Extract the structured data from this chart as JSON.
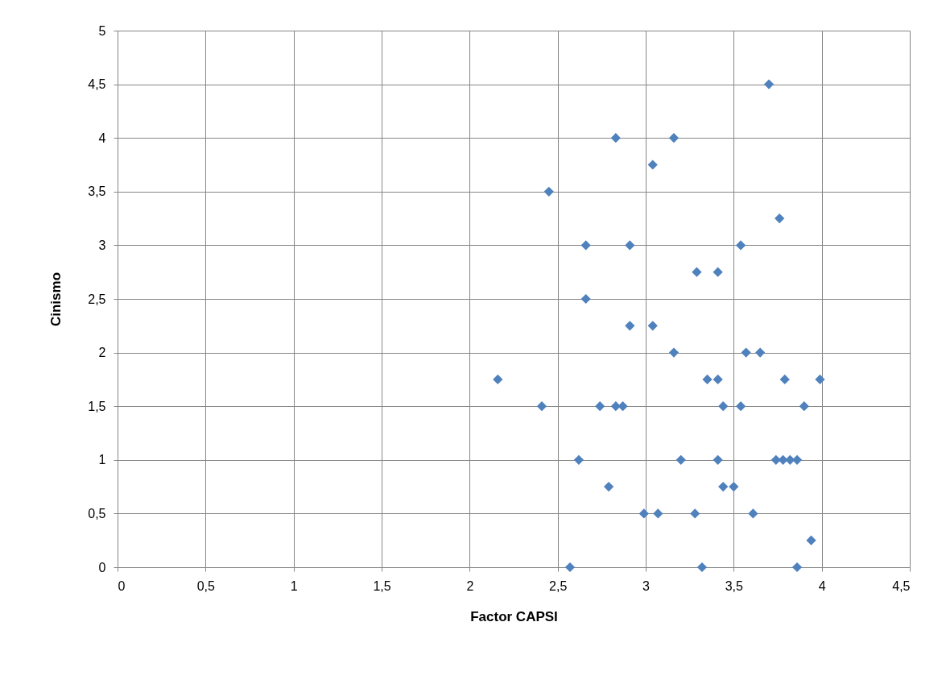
{
  "chart_data": {
    "type": "scatter",
    "xlabel": "Factor CAPSI",
    "ylabel": "Cinismo",
    "marker": "diamond",
    "grid": true,
    "xlim": [
      0,
      4.5
    ],
    "xticks": [
      0,
      {
        "value": 0.5,
        "label": "0,5"
      },
      1,
      {
        "value": 1.5,
        "label": "1,5"
      },
      2,
      {
        "value": 2.5,
        "label": "2,5"
      },
      3,
      {
        "value": 3.5,
        "label": "3,5"
      },
      4,
      {
        "value": 4.5,
        "label": "4,5"
      }
    ],
    "ylim": [
      0,
      5
    ],
    "yticks": [
      0,
      {
        "value": 0.5,
        "label": "0,5"
      },
      1,
      {
        "value": 1.5,
        "label": "1,5"
      },
      2,
      {
        "value": 2.5,
        "label": "2,5"
      },
      3,
      {
        "value": 3.5,
        "label": "3,5"
      },
      4,
      {
        "value": 4.5,
        "label": "4,5"
      },
      5
    ],
    "series": [
      {
        "color": "#4f81bd",
        "x": [
          3.7,
          2.83,
          3.16,
          3.04,
          2.45,
          3.76,
          2.66,
          2.91,
          3.54,
          3.29,
          3.41,
          2.66,
          2.91,
          3.04,
          3.16,
          3.57,
          3.65,
          2.16,
          3.35,
          3.41,
          3.79,
          3.99,
          2.41,
          2.74,
          2.83,
          2.87,
          3.44,
          3.54,
          3.9,
          2.62,
          3.2,
          3.41,
          3.74,
          3.78,
          3.82,
          3.86,
          2.79,
          3.44,
          3.5,
          2.99,
          3.07,
          3.28,
          3.61,
          3.94,
          2.57,
          3.32,
          3.86
        ],
        "values": [
          4.5,
          4,
          4,
          3.75,
          3.5,
          3.25,
          3,
          3,
          3,
          2.75,
          2.75,
          2.5,
          2.25,
          2.25,
          2,
          2,
          2,
          1.75,
          1.75,
          1.75,
          1.75,
          1.75,
          1.5,
          1.5,
          1.5,
          1.5,
          1.5,
          1.5,
          1.5,
          1,
          1,
          1,
          1,
          1,
          1,
          1,
          0.75,
          0.75,
          0.75,
          0.5,
          0.5,
          0.5,
          0.5,
          0.25,
          0,
          0,
          0
        ]
      }
    ]
  }
}
